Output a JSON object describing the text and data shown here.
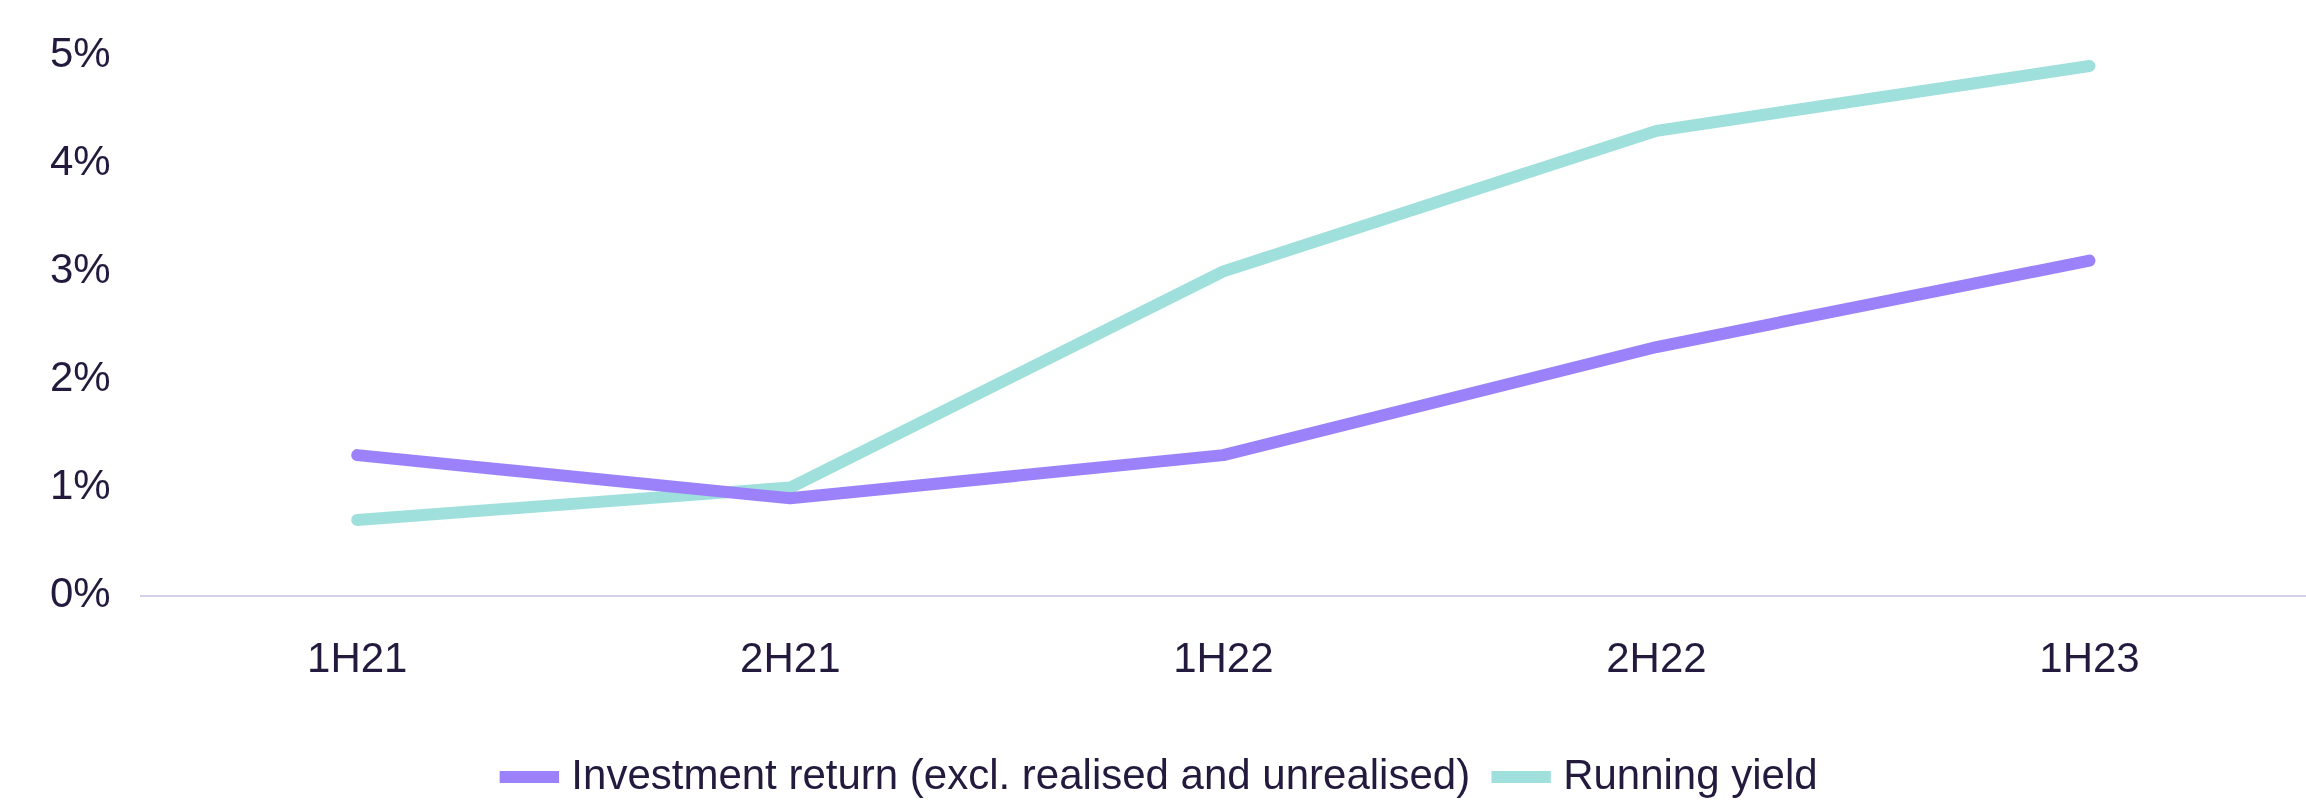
{
  "chart_data": {
    "type": "line",
    "categories": [
      "1H21",
      "2H21",
      "1H22",
      "2H22",
      "1H23"
    ],
    "series": [
      {
        "name": "Investment return (excl. realised and unrealised)",
        "color": "#9b82fa",
        "values": [
          1.3,
          0.9,
          1.3,
          2.3,
          3.1
        ]
      },
      {
        "name": "Running yield",
        "color": "#a0e0dc",
        "values": [
          0.7,
          1.0,
          3.0,
          4.3,
          4.9
        ]
      }
    ],
    "ylim": [
      0,
      5
    ],
    "yticks": [
      {
        "value": 0,
        "label": "0%"
      },
      {
        "value": 1,
        "label": "1%"
      },
      {
        "value": 2,
        "label": "2%"
      },
      {
        "value": 3,
        "label": "3%"
      },
      {
        "value": 4,
        "label": "4%"
      },
      {
        "value": 5,
        "label": "5%"
      }
    ],
    "grid": false,
    "legend": "bottom",
    "marker": "none",
    "line_style": "solid"
  }
}
